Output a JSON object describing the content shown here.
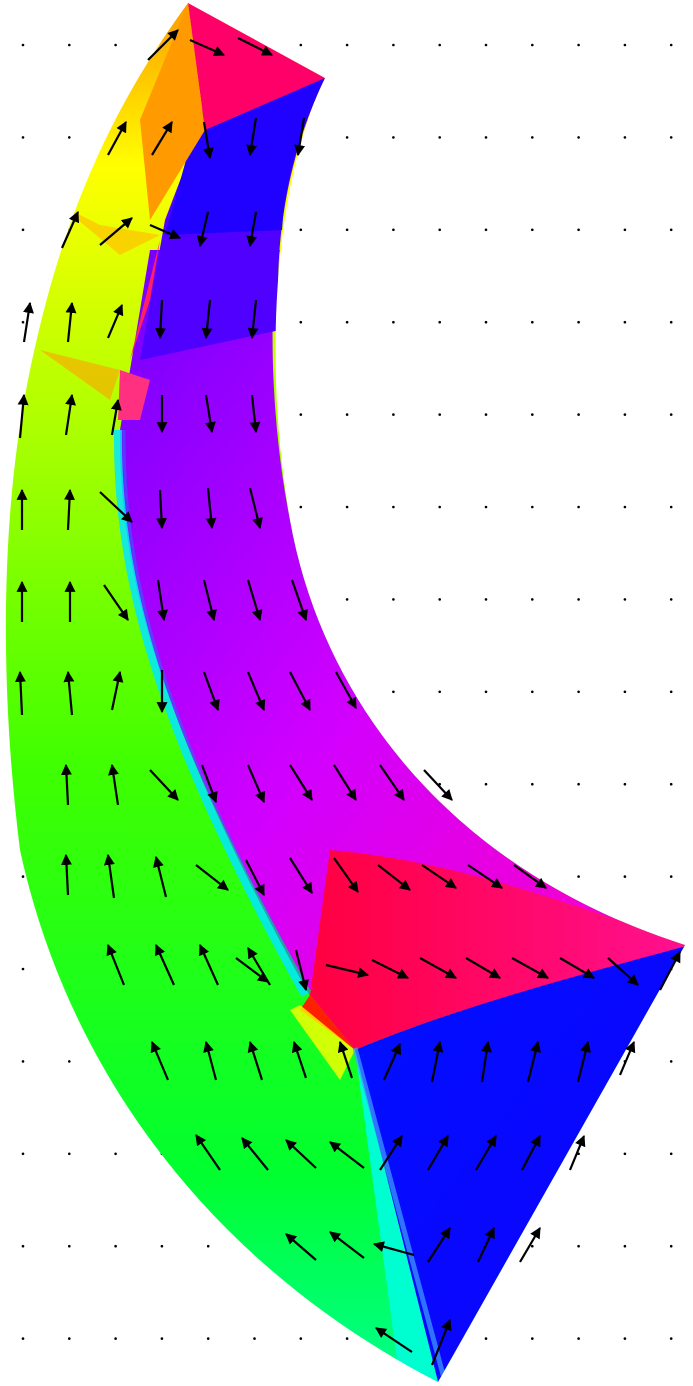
{
  "figure": {
    "kind": "magnetization vector field on curved strip",
    "background": "#ffffff",
    "arrow_color": "#000000",
    "grid_dot_color": "#000000",
    "domain_colors": {
      "yellow": "#ffff00",
      "orange": "#ffb000",
      "magenta_red": "#ff0066",
      "blue": "#0000ff",
      "violet": "#7000ff",
      "purple": "#b000ff",
      "magenta": "#ff00ff",
      "green": "#00ff00",
      "light_green": "#60ff00",
      "yellow_green": "#b0ff00",
      "spring_green": "#00ff80",
      "cyan": "#00ffff"
    }
  }
}
